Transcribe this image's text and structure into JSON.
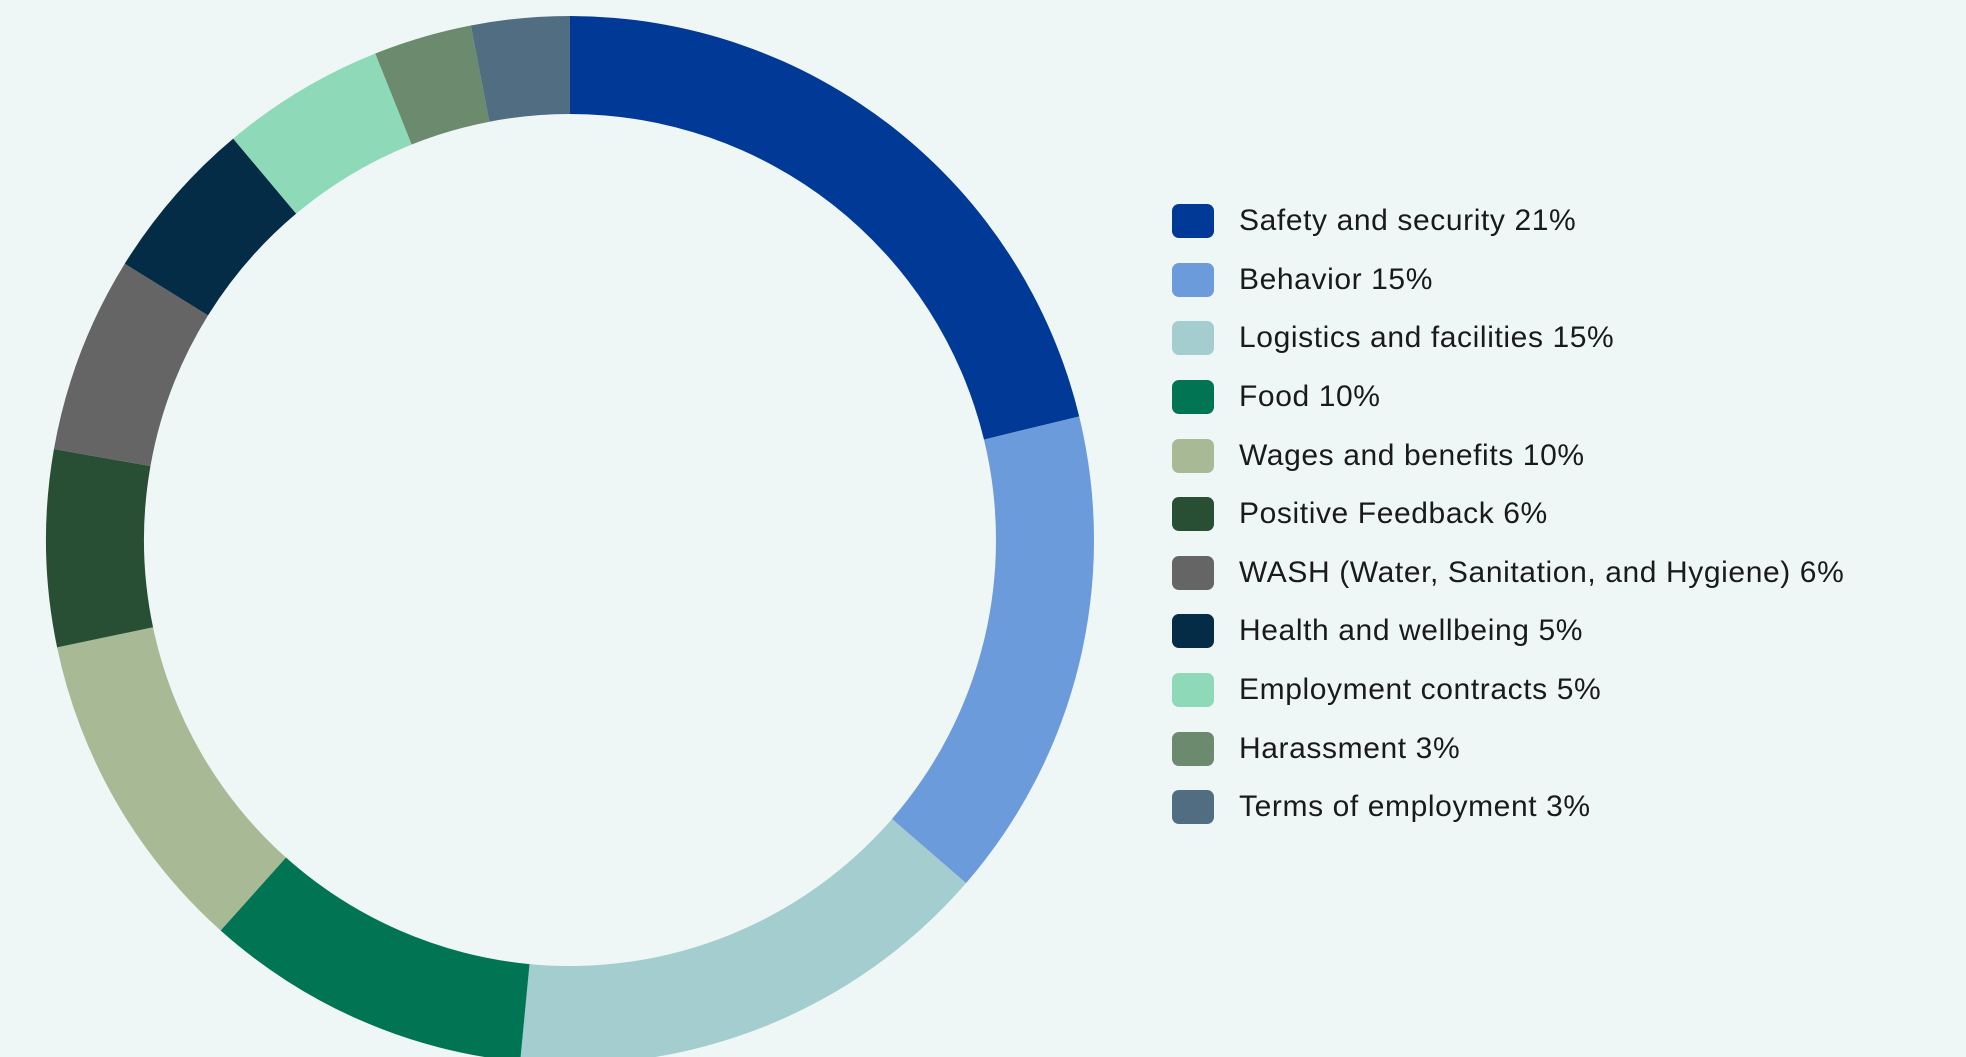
{
  "chart_data": {
    "type": "pie",
    "donut": true,
    "title": "",
    "legend_position": "right",
    "categories": [
      "Safety and security",
      "Behavior",
      "Logistics and facilities",
      "Food",
      "Wages and benefits",
      "Positive Feedback",
      "WASH (Water, Sanitation, and Hygiene)",
      "Health and wellbeing",
      "Employment contracts",
      "Harassment",
      "Terms of employment"
    ],
    "values": [
      21,
      15,
      15,
      10,
      10,
      6,
      6,
      5,
      5,
      3,
      3
    ],
    "colors": [
      "#003a96",
      "#6b9bdb",
      "#a3cdcf",
      "#017553",
      "#a7b995",
      "#284f33",
      "#656565",
      "#052c47",
      "#8ed9b7",
      "#6b8a6e",
      "#506d82"
    ],
    "legend_labels": [
      "Safety and security 21%",
      "Behavior 15%",
      "Logistics and facilities 15%",
      "Food 10%",
      "Wages and benefits 10%",
      "Positive Feedback 6%",
      "WASH (Water, Sanitation, and Hygiene) 6%",
      "Health and wellbeing 5%",
      "Employment contracts 5%",
      "Harassment 3%",
      "Terms of employment 3%"
    ]
  }
}
